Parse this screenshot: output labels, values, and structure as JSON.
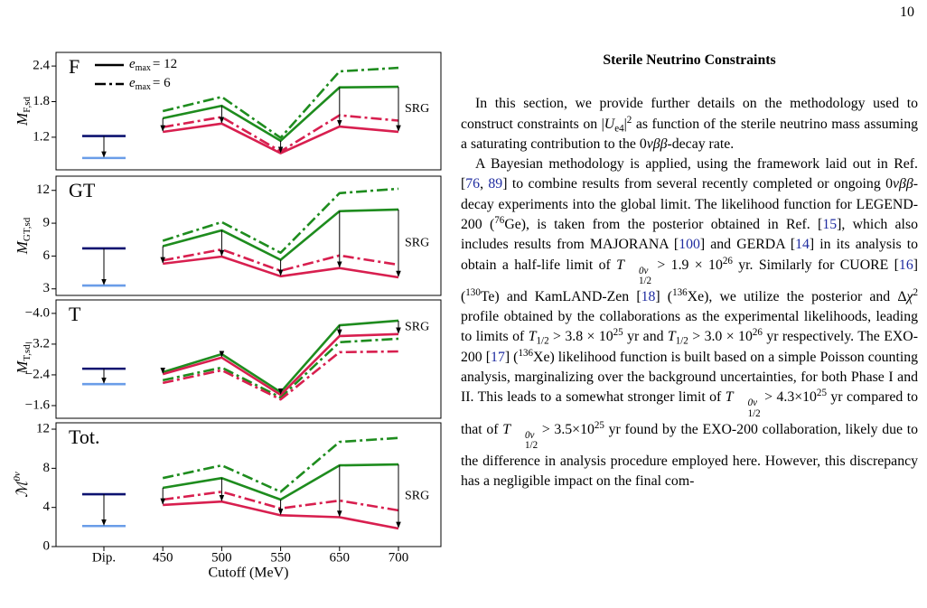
{
  "page_number": "10",
  "chart_data": [
    {
      "type": "line",
      "label": "F",
      "ylabel": {
        "main": "M",
        "sub": "F,sd"
      },
      "ylim": [
        0.65,
        2.63
      ],
      "yticks": [
        1.2,
        1.8,
        2.4
      ],
      "annotation": "SRG",
      "legend": [
        {
          "var": "e",
          "sub": "max",
          "text": "= 12",
          "dash": "solid"
        },
        {
          "var": "e",
          "sub": "max",
          "text": "= 6",
          "dash": "dashdot"
        }
      ],
      "series": [
        {
          "color": "#1e8c1e",
          "dash": "solid",
          "values": [
            null,
            1.52,
            1.73,
            1.14,
            2.04,
            2.05
          ]
        },
        {
          "color": "#1e8c1e",
          "dash": "dashdot",
          "values": [
            null,
            1.64,
            1.88,
            1.19,
            2.31,
            2.37
          ]
        },
        {
          "color": "#d81f4f",
          "dash": "solid",
          "values": [
            null,
            1.29,
            1.43,
            0.93,
            1.38,
            1.29
          ]
        },
        {
          "color": "#d81f4f",
          "dash": "dashdot",
          "values": [
            null,
            1.37,
            1.54,
            0.96,
            1.57,
            1.48
          ]
        },
        {
          "color": "#0d1270",
          "dash": "solid",
          "values": [
            1.22,
            null,
            null,
            null,
            null,
            null
          ]
        },
        {
          "color": "#6a9de8",
          "dash": "solid",
          "values": [
            0.85,
            null,
            null,
            null,
            null,
            null
          ]
        }
      ]
    },
    {
      "type": "line",
      "label": "GT",
      "ylabel": {
        "main": "M",
        "sub": "GT,sd"
      },
      "ylim": [
        2.4,
        13.3
      ],
      "yticks": [
        3,
        6,
        9,
        12
      ],
      "annotation": "SRG",
      "series": [
        {
          "color": "#1e8c1e",
          "dash": "solid",
          "values": [
            null,
            6.9,
            8.35,
            5.65,
            10.1,
            10.25
          ]
        },
        {
          "color": "#1e8c1e",
          "dash": "dashdot",
          "values": [
            null,
            7.4,
            9.1,
            6.3,
            11.75,
            12.15
          ]
        },
        {
          "color": "#d81f4f",
          "dash": "solid",
          "values": [
            null,
            5.3,
            5.95,
            4.15,
            4.9,
            4.05
          ]
        },
        {
          "color": "#d81f4f",
          "dash": "dashdot",
          "values": [
            null,
            5.6,
            6.6,
            4.65,
            6.05,
            5.2
          ]
        },
        {
          "color": "#0d1270",
          "dash": "solid",
          "values": [
            6.7,
            null,
            null,
            null,
            null,
            null
          ]
        },
        {
          "color": "#6a9de8",
          "dash": "solid",
          "values": [
            3.3,
            null,
            null,
            null,
            null,
            null
          ]
        }
      ]
    },
    {
      "type": "line",
      "label": "T",
      "ylabel": {
        "main": "M",
        "sub": "T,sd"
      },
      "ylim": [
        -1.27,
        -4.35
      ],
      "yticks": [
        {
          "value": -1.6,
          "label": "−1.6"
        },
        {
          "value": -2.4,
          "label": "−2.4"
        },
        {
          "value": -3.2,
          "label": "−3.2"
        },
        {
          "value": -4.0,
          "label": "−4.0"
        }
      ],
      "annotation": "SRG",
      "series": [
        {
          "color": "#1e8c1e",
          "dash": "solid",
          "values": [
            null,
            -2.47,
            -2.94,
            -1.95,
            -3.69,
            -3.81
          ]
        },
        {
          "color": "#1e8c1e",
          "dash": "dashdot",
          "values": [
            null,
            -2.26,
            -2.59,
            -1.81,
            -3.25,
            -3.34
          ]
        },
        {
          "color": "#d81f4f",
          "dash": "solid",
          "values": [
            null,
            -2.42,
            -2.85,
            -1.88,
            -3.41,
            -3.46
          ]
        },
        {
          "color": "#d81f4f",
          "dash": "dashdot",
          "values": [
            null,
            -2.19,
            -2.52,
            -1.76,
            -2.99,
            -3.01
          ]
        },
        {
          "color": "#0d1270",
          "dash": "solid",
          "values": [
            -2.56,
            null,
            null,
            null,
            null,
            null
          ]
        },
        {
          "color": "#6a9de8",
          "dash": "solid",
          "values": [
            -2.16,
            null,
            null,
            null,
            null,
            null
          ]
        }
      ]
    },
    {
      "type": "line",
      "label": "Tot.",
      "ylabel": {
        "main": "ℳ",
        "sup": "0ν"
      },
      "ylim": [
        0,
        12.65
      ],
      "yticks": [
        0,
        4,
        8,
        12
      ],
      "annotation": "SRG",
      "categories": [
        "Dip.",
        "450",
        "500",
        "550",
        "650",
        "700"
      ],
      "xlabel": "Cutoff (MeV)",
      "series": [
        {
          "color": "#1e8c1e",
          "dash": "solid",
          "values": [
            null,
            6.0,
            7.0,
            4.8,
            8.3,
            8.4
          ]
        },
        {
          "color": "#1e8c1e",
          "dash": "dashdot",
          "values": [
            null,
            7.0,
            8.3,
            5.6,
            10.7,
            11.1
          ]
        },
        {
          "color": "#d81f4f",
          "dash": "solid",
          "values": [
            null,
            4.25,
            4.6,
            3.2,
            3.0,
            1.85
          ]
        },
        {
          "color": "#d81f4f",
          "dash": "dashdot",
          "values": [
            null,
            4.8,
            5.6,
            3.9,
            4.7,
            3.7
          ]
        },
        {
          "color": "#0d1270",
          "dash": "solid",
          "values": [
            5.35,
            null,
            null,
            null,
            null,
            null
          ]
        },
        {
          "color": "#6a9de8",
          "dash": "solid",
          "values": [
            2.1,
            null,
            null,
            null,
            null,
            null
          ]
        }
      ]
    }
  ],
  "article": {
    "heading": "Sterile Neutrino Constraints",
    "paragraphs": [
      [
        "In this section, we provide further details on the methodology used to construct constraints on |",
        {
          "i": "U"
        },
        {
          "sub": "e4"
        },
        "|",
        {
          "sup": "2"
        },
        " as function of the sterile neutrino mass assuming a saturating contribution to the 0",
        {
          "i": "νββ"
        },
        "-decay rate."
      ],
      [
        "A Bayesian methodology is applied, using the framework laid out in Ref. [",
        {
          "ref": "76"
        },
        ", ",
        {
          "ref": "89"
        },
        "] to combine results from several recently completed or ongoing 0",
        {
          "i": "νββ"
        },
        "-decay experiments into the global limit. The likelihood function for LEGEND-200 (",
        {
          "sup": "76"
        },
        "Ge), is taken from the posterior obtained in Ref. [",
        {
          "ref": "15"
        },
        "], which also includes results from MAJORANA [",
        {
          "ref": "100"
        },
        "] and GERDA [",
        {
          "ref": "14"
        },
        "] in its analysis to obtain a half-life limit of ",
        {
          "i": "T"
        },
        {
          "ss": {
            "sup": "0ν",
            "sub": "1/2"
          }
        },
        " > 1.9 × 10",
        {
          "sup": "26"
        },
        " yr. Similarly for CUORE [",
        {
          "ref": "16"
        },
        "] (",
        {
          "sup": "130"
        },
        "Te) and KamLAND-Zen [",
        {
          "ref": "18"
        },
        "] (",
        {
          "sup": "136"
        },
        "Xe), we utilize the posterior and Δ",
        {
          "i": "χ"
        },
        {
          "sup": "2"
        },
        " profile obtained by the collaborations as the experimental likelihoods, leading to limits of ",
        {
          "i": "T"
        },
        {
          "sub": "1/2"
        },
        " > 3.8 × 10",
        {
          "sup": "25"
        },
        " yr and ",
        {
          "i": "T"
        },
        {
          "sub": "1/2"
        },
        " > 3.0 × 10",
        {
          "sup": "26"
        },
        " yr respectively. The EXO-200 [",
        {
          "ref": "17"
        },
        "] (",
        {
          "sup": "136"
        },
        "Xe) likelihood function is built based on a simple Poisson counting analysis, marginalizing over the background uncertainties, for both Phase I and II. This leads to a somewhat stronger limit of ",
        {
          "i": "T"
        },
        {
          "ss": {
            "sup": "0ν",
            "sub": "1/2"
          }
        },
        " > 4.3×10",
        {
          "sup": "25"
        },
        " yr compared to that of ",
        {
          "i": "T"
        },
        {
          "ss": {
            "sup": "0ν",
            "sub": "1/2"
          }
        },
        " > 3.5×10",
        {
          "sup": "25"
        },
        " yr found by the EXO-200 collaboration, likely due to the difference in analysis procedure employed here. However, this discrepancy has a negligible impact on the final com-"
      ]
    ]
  }
}
